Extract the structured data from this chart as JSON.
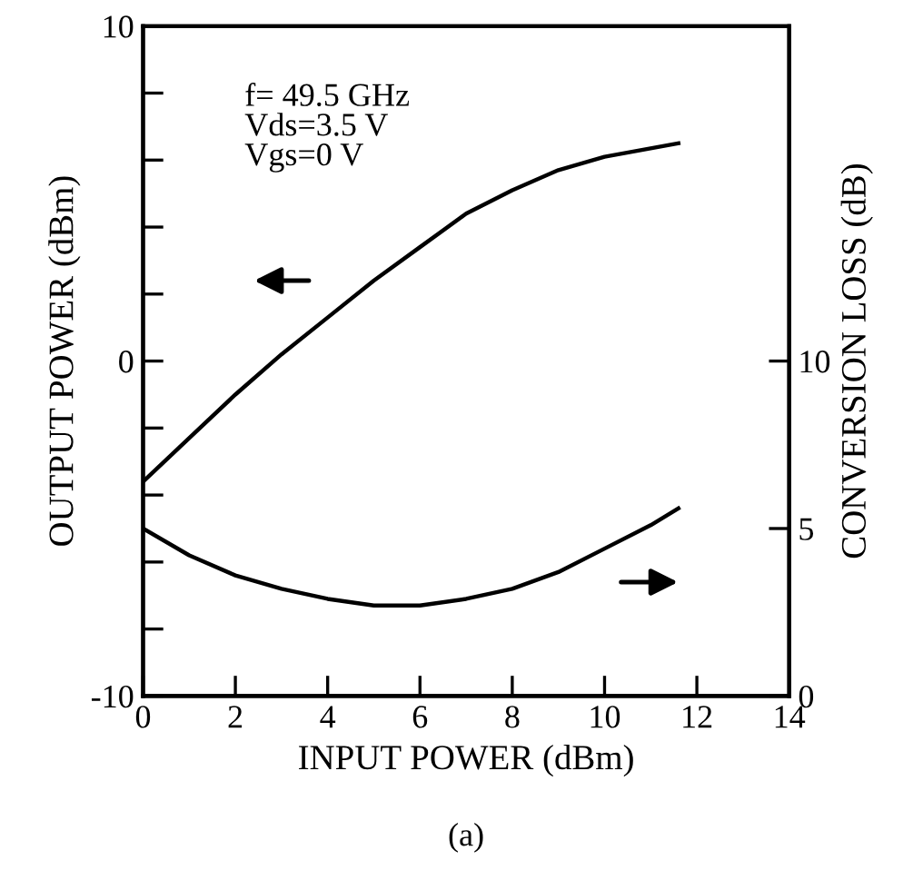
{
  "chart_data": {
    "type": "line",
    "xlabel": "INPUT POWER (dBm)",
    "ylabel": "OUTPUT POWER (dBm)",
    "y2label": "CONVERSION LOSS (dB)",
    "series": [
      {
        "color": "#000000",
        "x": [
          0,
          1,
          2,
          3,
          4,
          5,
          6,
          7,
          8,
          9,
          10,
          11.6
        ],
        "values": [
          -3.6,
          -2.3,
          -1.0,
          0.2,
          1.3,
          2.4,
          3.4,
          4.4,
          5.1,
          5.7,
          6.1,
          6.5
        ]
      },
      {
        "color": "#000000",
        "axis": "y2",
        "x": [
          0,
          1,
          2,
          3,
          4,
          5,
          6,
          7,
          8,
          9,
          10,
          11,
          11.6
        ],
        "values": [
          5.0,
          4.2,
          3.6,
          3.2,
          2.9,
          2.7,
          2.7,
          2.9,
          3.2,
          3.7,
          4.4,
          5.1,
          5.6
        ]
      }
    ],
    "xlim": [
      0,
      14
    ],
    "xticks": [
      0,
      2,
      4,
      6,
      8,
      10,
      12,
      14
    ],
    "ylim": [
      -10,
      10
    ],
    "yticks": [
      -10,
      {
        "value": -8,
        "label": null
      },
      {
        "value": -6,
        "label": null
      },
      {
        "value": -4,
        "label": null
      },
      {
        "value": -2,
        "label": null
      },
      0,
      {
        "value": 2,
        "label": null
      },
      {
        "value": 4,
        "label": null
      },
      {
        "value": 6,
        "label": null
      },
      {
        "value": 8,
        "label": null
      },
      10
    ],
    "y2lim": [
      0,
      20
    ],
    "y2ticks": [
      0,
      5,
      10
    ],
    "annotations": [
      "f= 49.5 GHz\nVds=3.5 V\nVgs=0 V",
      "(a)"
    ],
    "grid": false,
    "legend": false,
    "marker": "none",
    "line_style": "solid"
  }
}
